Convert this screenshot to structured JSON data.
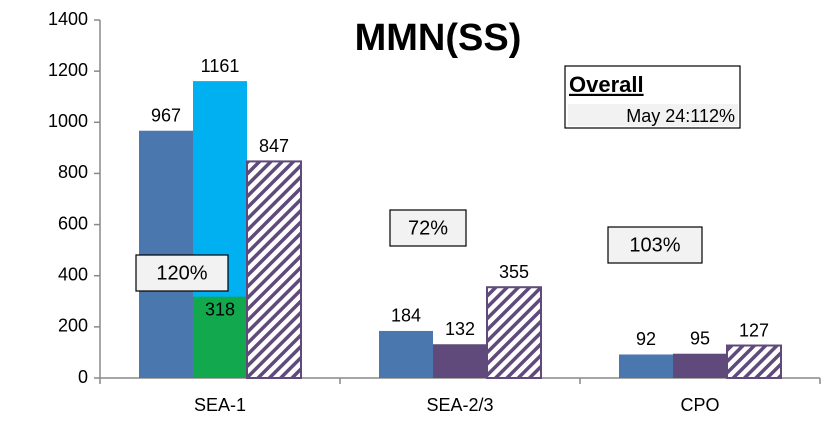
{
  "chart_data": {
    "type": "bar",
    "title": "MMN(SS)",
    "categories": [
      "SEA-1",
      "SEA-2/3",
      "CPO"
    ],
    "series": [
      {
        "color": "#4a77ae",
        "values": [
          967,
          184,
          92
        ]
      },
      {
        "colors": [
          "#00b0f0",
          "#604a7b",
          "#604a7b"
        ],
        "values": [
          1161,
          132,
          95
        ]
      },
      {
        "color": "#12a84e",
        "values": [
          318,
          null,
          null
        ],
        "overlay": 1
      },
      {
        "color": "#604a7b",
        "hatched": true,
        "values": [
          847,
          355,
          127
        ]
      }
    ],
    "annotations": [
      "120%",
      "72%",
      "103%",
      "Overall",
      "May 24:112%"
    ],
    "ylim": [
      0,
      1400
    ],
    "yticks": [
      0,
      200,
      400,
      600,
      800,
      1000,
      1200,
      1400
    ],
    "grid": false
  }
}
